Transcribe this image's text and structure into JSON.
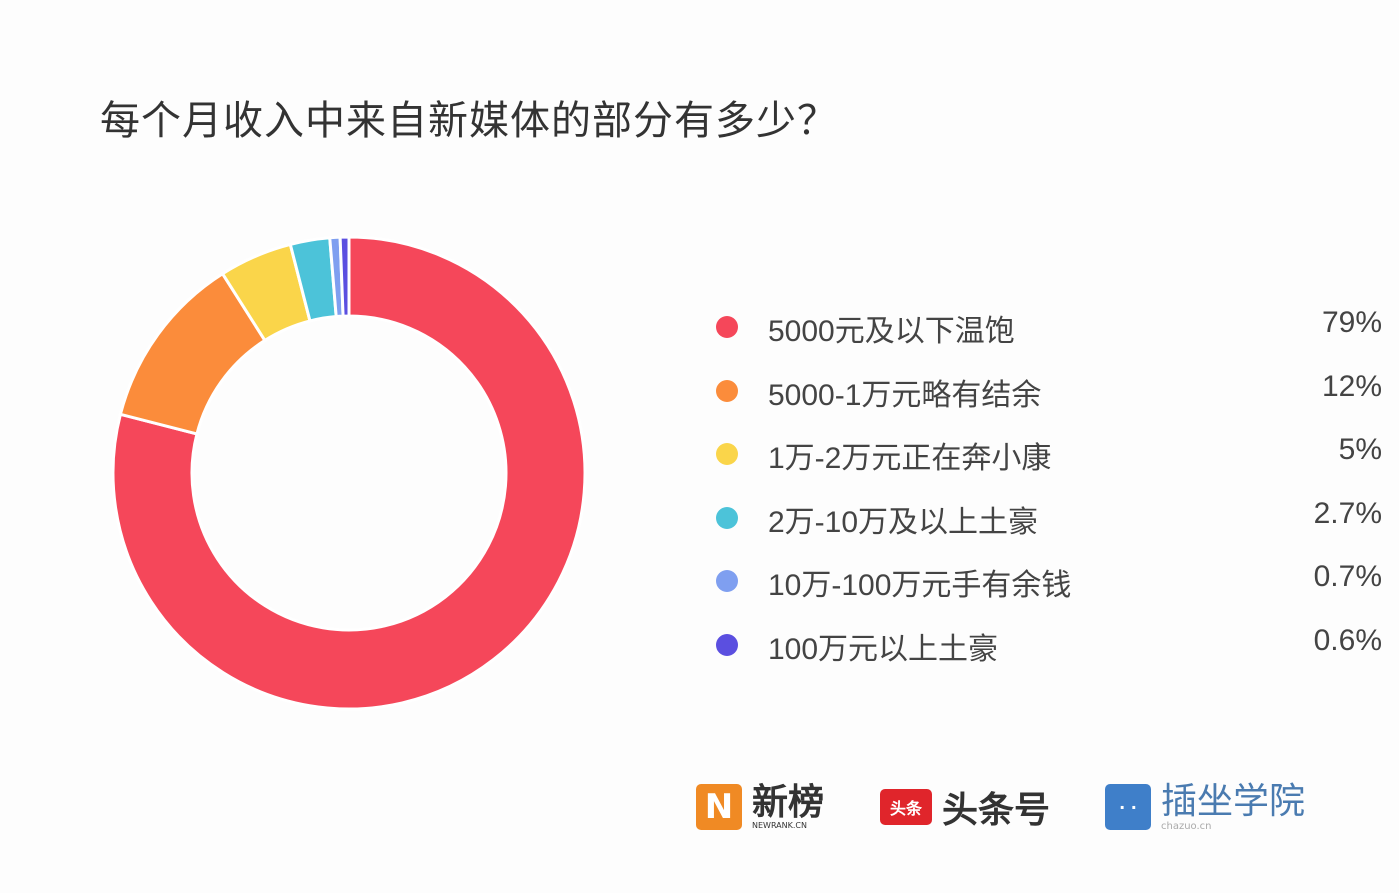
{
  "chart_data": {
    "type": "pie",
    "variant": "donut",
    "title": "每个月收入中来自新媒体的部分有多少？",
    "legend_position": "right",
    "categories": [
      "5000元及以下温饱",
      "5000-1万元略有结余",
      "1万-2万元正在奔小康",
      "2万-10万及以上土豪",
      "10万-100万元手有余钱",
      "100万元以上土豪"
    ],
    "value_labels": [
      "79%",
      "12%",
      "5%",
      "2.7%",
      "0.7%",
      "0.6%"
    ],
    "values": [
      79,
      12,
      5,
      2.7,
      0.7,
      0.6
    ],
    "colors": [
      "#f5475a",
      "#fb8c3b",
      "#fad54a",
      "#4cc3d9",
      "#7f9ff0",
      "#5b4fe0"
    ]
  },
  "logos": [
    {
      "name": "新榜",
      "sub": "NEWRANK.CN",
      "color": "#f08a24"
    },
    {
      "name": "头条号",
      "mark": "头条",
      "color": "#e0252b"
    },
    {
      "name": "插坐学院",
      "sub": "chazuo.cn",
      "color": "#3f7fc9"
    }
  ]
}
